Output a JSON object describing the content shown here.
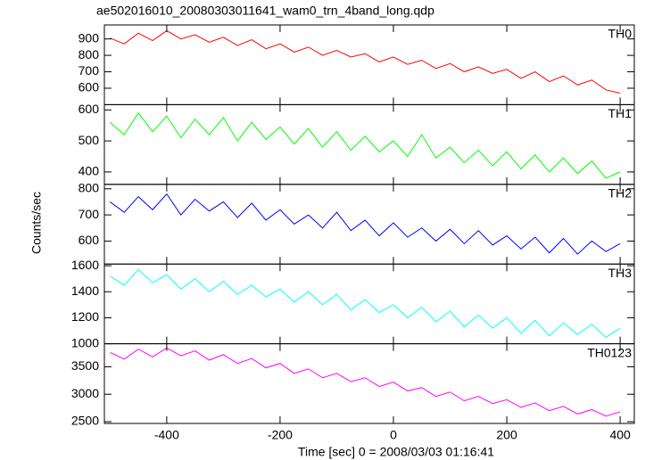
{
  "title": "ae502016010_20080303011641_wam0_trn_4band_long.qdp",
  "ylabel": "Counts/sec",
  "chart_data": [
    {
      "type": "line",
      "x": [
        -500,
        -475,
        -450,
        -425,
        -400,
        -375,
        -350,
        -325,
        -300,
        -275,
        -250,
        -225,
        -200,
        -175,
        -150,
        -125,
        -100,
        -75,
        -50,
        -25,
        0,
        25,
        50,
        75,
        100,
        125,
        150,
        175,
        200,
        225,
        250,
        275,
        300,
        325,
        350,
        375,
        400
      ],
      "xlim": [
        -510,
        425
      ],
      "xticks": [
        -400,
        -200,
        0,
        200,
        400
      ],
      "ylim": [
        500,
        985
      ],
      "yticks": [
        600,
        700,
        800,
        900
      ],
      "series": [
        {
          "name": "TH0",
          "color": "#ff0000",
          "values": [
            905,
            870,
            935,
            890,
            950,
            900,
            925,
            880,
            910,
            860,
            895,
            840,
            870,
            820,
            850,
            800,
            830,
            790,
            810,
            760,
            790,
            745,
            770,
            720,
            750,
            700,
            730,
            690,
            715,
            660,
            700,
            640,
            675,
            620,
            650,
            590,
            570
          ]
        }
      ]
    },
    {
      "type": "line",
      "x": [
        -500,
        -475,
        -450,
        -425,
        -400,
        -375,
        -350,
        -325,
        -300,
        -275,
        -250,
        -225,
        -200,
        -175,
        -150,
        -125,
        -100,
        -75,
        -50,
        -25,
        0,
        25,
        50,
        75,
        100,
        125,
        150,
        175,
        200,
        225,
        250,
        275,
        300,
        325,
        350,
        375,
        400
      ],
      "xlim": [
        -510,
        425
      ],
      "xticks": [
        -400,
        -200,
        0,
        200,
        400
      ],
      "ylim": [
        360,
        617
      ],
      "yticks": [
        400,
        500,
        600
      ],
      "series": [
        {
          "name": "TH1",
          "color": "#00ff00",
          "values": [
            560,
            520,
            590,
            530,
            580,
            510,
            570,
            520,
            575,
            500,
            560,
            505,
            545,
            490,
            540,
            480,
            530,
            470,
            515,
            465,
            500,
            450,
            520,
            445,
            480,
            430,
            470,
            420,
            465,
            410,
            455,
            400,
            445,
            395,
            435,
            380,
            400
          ]
        }
      ]
    },
    {
      "type": "line",
      "x": [
        -500,
        -475,
        -450,
        -425,
        -400,
        -375,
        -350,
        -325,
        -300,
        -275,
        -250,
        -225,
        -200,
        -175,
        -150,
        -125,
        -100,
        -75,
        -50,
        -25,
        0,
        25,
        50,
        75,
        100,
        125,
        150,
        175,
        200,
        225,
        250,
        275,
        300,
        325,
        350,
        375,
        400
      ],
      "xlim": [
        -510,
        425
      ],
      "xticks": [
        -400,
        -200,
        0,
        200,
        400
      ],
      "ylim": [
        512,
        817
      ],
      "yticks": [
        600,
        700,
        800
      ],
      "series": [
        {
          "name": "TH2",
          "color": "#0000ff",
          "values": [
            750,
            710,
            770,
            720,
            780,
            700,
            760,
            715,
            750,
            690,
            745,
            680,
            720,
            665,
            700,
            650,
            710,
            640,
            680,
            620,
            670,
            615,
            650,
            600,
            645,
            590,
            640,
            585,
            620,
            570,
            615,
            555,
            610,
            550,
            600,
            560,
            590
          ]
        }
      ]
    },
    {
      "type": "line",
      "x": [
        -500,
        -475,
        -450,
        -425,
        -400,
        -375,
        -350,
        -325,
        -300,
        -275,
        -250,
        -225,
        -200,
        -175,
        -150,
        -125,
        -100,
        -75,
        -50,
        -25,
        0,
        25,
        50,
        75,
        100,
        125,
        150,
        175,
        200,
        225,
        250,
        275,
        300,
        325,
        350,
        375,
        400
      ],
      "xlim": [
        -510,
        425
      ],
      "xticks": [
        -400,
        -200,
        0,
        200,
        400
      ],
      "ylim": [
        1000,
        1613
      ],
      "yticks": [
        1000,
        1200,
        1400,
        1600
      ],
      "series": [
        {
          "name": "TH3",
          "color": "#00ffff",
          "values": [
            1520,
            1450,
            1570,
            1470,
            1530,
            1420,
            1500,
            1400,
            1480,
            1380,
            1450,
            1360,
            1420,
            1320,
            1400,
            1300,
            1380,
            1260,
            1340,
            1240,
            1300,
            1200,
            1280,
            1170,
            1250,
            1130,
            1220,
            1120,
            1200,
            1080,
            1180,
            1060,
            1160,
            1070,
            1150,
            1050,
            1120
          ]
        }
      ]
    },
    {
      "type": "line",
      "x": [
        -500,
        -475,
        -450,
        -425,
        -400,
        -375,
        -350,
        -325,
        -300,
        -275,
        -250,
        -225,
        -200,
        -175,
        -150,
        -125,
        -100,
        -75,
        -50,
        -25,
        0,
        25,
        50,
        75,
        100,
        125,
        150,
        175,
        200,
        225,
        250,
        275,
        300,
        325,
        350,
        375,
        400
      ],
      "xlim": [
        -510,
        425
      ],
      "xticks": [
        -400,
        -200,
        0,
        200,
        400
      ],
      "ylim": [
        2468,
        3919
      ],
      "yticks": [
        2500,
        3000,
        3500
      ],
      "xlabel": "Time [sec] 0 = 2008/03/03 01:16:41",
      "series": [
        {
          "name": "TH0123",
          "color": "#ff00ff",
          "values": [
            3760,
            3640,
            3820,
            3680,
            3840,
            3700,
            3790,
            3620,
            3720,
            3560,
            3650,
            3480,
            3560,
            3380,
            3460,
            3300,
            3380,
            3230,
            3300,
            3140,
            3220,
            3060,
            3120,
            2960,
            3040,
            2880,
            2960,
            2830,
            2900,
            2760,
            2840,
            2700,
            2780,
            2640,
            2720,
            2600,
            2680
          ]
        }
      ]
    }
  ]
}
